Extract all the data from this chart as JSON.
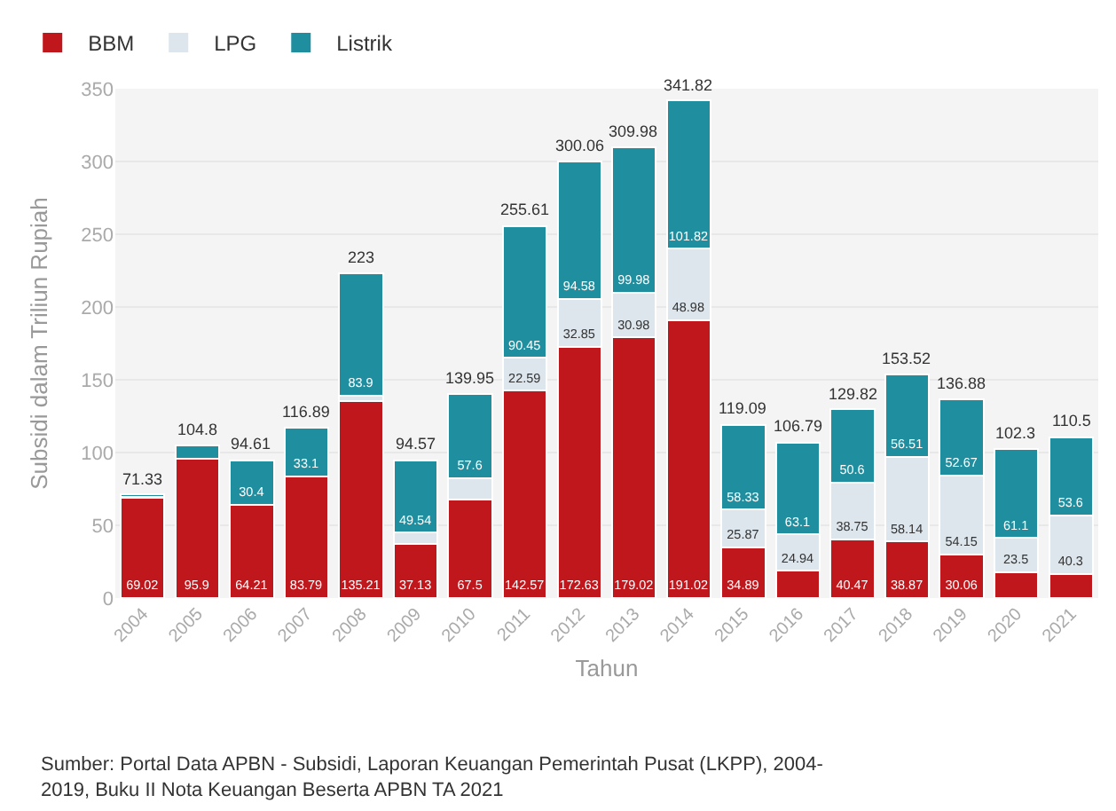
{
  "chart_data": {
    "type": "bar",
    "stacked": true,
    "xlabel": "Tahun",
    "ylabel": "Subsidi dalam Triliun Rupiah",
    "categories": [
      "2004",
      "2005",
      "2006",
      "2007",
      "2008",
      "2009",
      "2010",
      "2011",
      "2012",
      "2013",
      "2014",
      "2015",
      "2016",
      "2017",
      "2018",
      "2019",
      "2020",
      "2021"
    ],
    "series": [
      {
        "name": "BBM",
        "color": "#c0171c",
        "values": [
          69.02,
          95.9,
          64.21,
          83.79,
          135.21,
          37.13,
          67.5,
          142.57,
          172.63,
          179.02,
          191.02,
          34.89,
          18.75,
          40.47,
          38.87,
          30.06,
          17.7,
          16.6
        ],
        "value_labels": [
          "69.02",
          "95.9",
          "64.21",
          "83.79",
          "135.21",
          "37.13",
          "67.5",
          "142.57",
          "172.63",
          "179.02",
          "191.02",
          "34.89",
          null,
          "40.47",
          "38.87",
          "30.06",
          null,
          null
        ]
      },
      {
        "name": "LPG",
        "color": "#dde6ec",
        "values": [
          0.8,
          0,
          0,
          0,
          3.89,
          7.9,
          14.85,
          22.59,
          32.85,
          30.98,
          48.98,
          25.87,
          24.94,
          38.75,
          58.14,
          54.15,
          23.5,
          40.3
        ],
        "value_labels": [
          null,
          null,
          null,
          null,
          null,
          null,
          null,
          "22.59",
          "32.85",
          "30.98",
          "48.98",
          "25.87",
          "24.94",
          "38.75",
          "58.14",
          "54.15",
          "23.5",
          "40.3"
        ]
      },
      {
        "name": "Listrik",
        "color": "#1f8fa0",
        "values": [
          1.51,
          8.9,
          30.4,
          33.1,
          83.9,
          49.54,
          57.6,
          90.45,
          94.58,
          99.98,
          101.82,
          58.33,
          63.1,
          50.6,
          56.51,
          52.67,
          61.1,
          53.6
        ],
        "value_labels": [
          null,
          null,
          "30.4",
          "33.1",
          "83.9",
          "49.54",
          "57.6",
          "90.45",
          "94.58",
          "99.98",
          "101.82",
          "58.33",
          "63.1",
          "50.6",
          "56.51",
          "52.67",
          "61.1",
          "53.6"
        ]
      }
    ],
    "totals": [
      "71.33",
      "104.8",
      "94.61",
      "116.89",
      "223",
      "94.57",
      "139.95",
      "255.61",
      "300.06",
      "309.98",
      "341.82",
      "119.09",
      "106.79",
      "129.82",
      "153.52",
      "136.88",
      "102.3",
      "110.5"
    ],
    "ylim": [
      0,
      350
    ],
    "yticks": [
      0,
      50,
      100,
      150,
      200,
      250,
      300,
      350
    ],
    "grid": "y",
    "legend": "top left",
    "annotations": [
      "Sumber: Portal Data APBN - Subsidi, Laporan Keuangan Pemerintah Pusat (LKPP), 2004-\n2019, Buku II Nota Keuangan Beserta APBN TA 2021"
    ]
  }
}
